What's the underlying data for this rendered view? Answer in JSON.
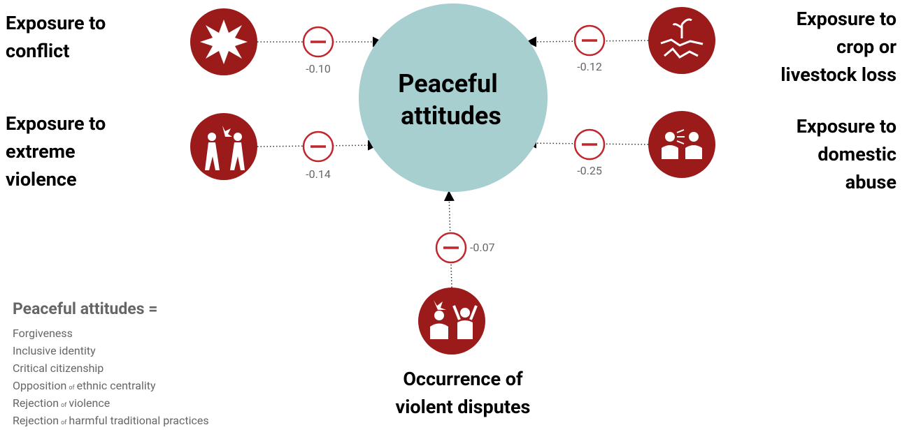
{
  "center": {
    "lines": [
      "Peaceful",
      "attitudes"
    ]
  },
  "nodes": [
    {
      "lines": [
        "Exposure to",
        "conflict"
      ],
      "coefficient": "-0.10"
    },
    {
      "lines": [
        "Exposure to",
        "extreme",
        "violence"
      ],
      "coefficient": "-0.14"
    },
    {
      "lines": [
        "Exposure to",
        "crop or",
        "livestock loss"
      ],
      "coefficient": "-0.12"
    },
    {
      "lines": [
        "Exposure to",
        "domestic",
        "abuse"
      ],
      "coefficient": "-0.25"
    },
    {
      "lines": [
        "Occurrence of",
        "violent disputes"
      ],
      "coefficient": "-0.07"
    }
  ],
  "legend": {
    "title": "Peaceful attitudes  =",
    "items": [
      {
        "text": "Forgiveness"
      },
      {
        "text": "Inclusive identity"
      },
      {
        "text": "Critical citizenship"
      },
      {
        "text": "Opposition",
        "small": "of",
        "after": "ethnic centrality"
      },
      {
        "text": "Rejection",
        "small": "of",
        "after": "violence"
      },
      {
        "text": "Rejection",
        "small": "of",
        "after": "harmful  traditional  practices"
      }
    ]
  }
}
